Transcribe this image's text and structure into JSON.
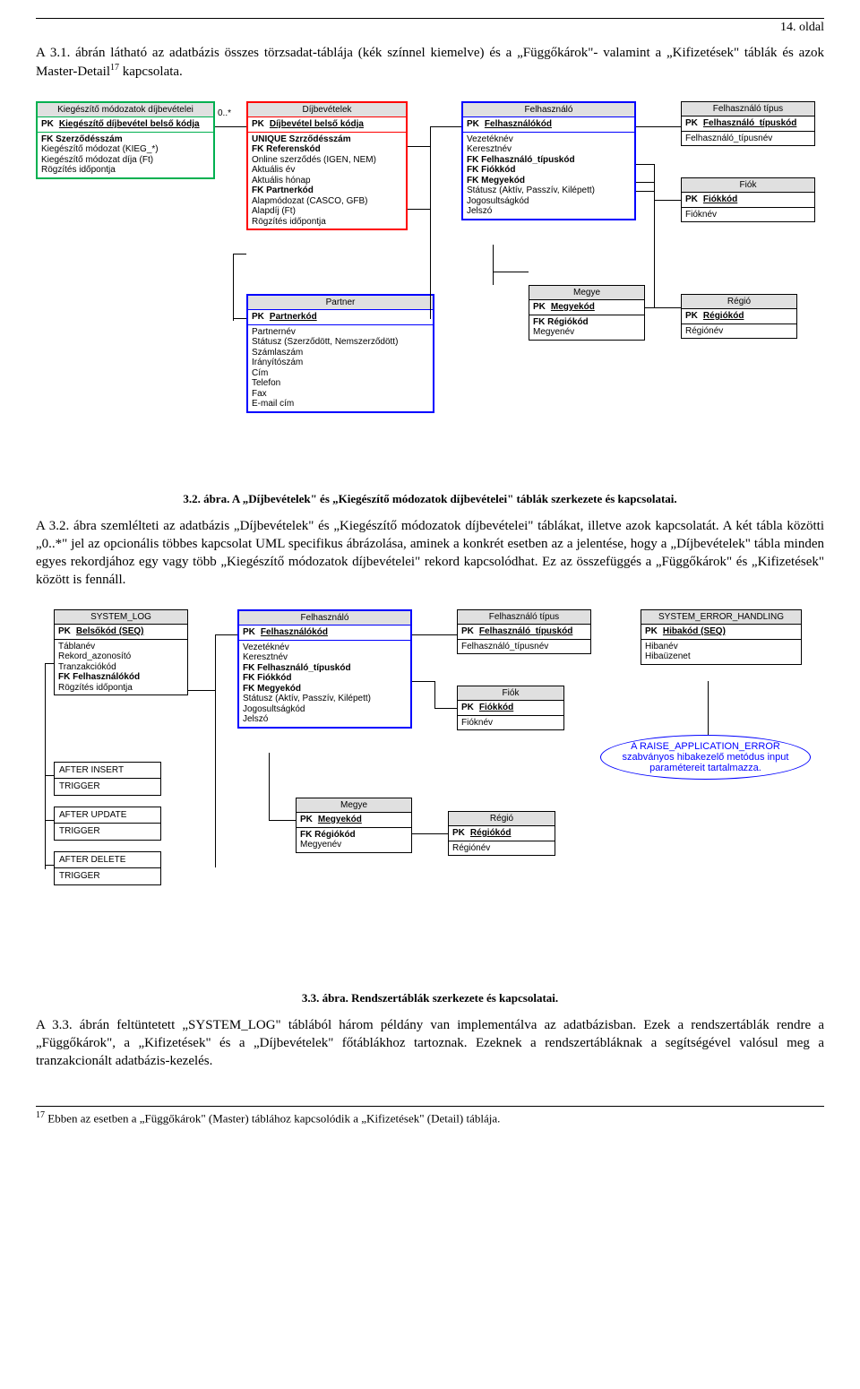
{
  "page_header": "14. oldal",
  "para1": "A 3.1. ábrán látható az adatbázis összes törzsadat-táblája (kék színnel kiemelve) és a „Függőkárok\"- valamint a „Kifizetések\" táblák és azok Master-Detail",
  "para1_sup": "17",
  "para1_tail": " kapcsolata.",
  "caption1": "3.2. ábra. A „Díjbevételek\" és „Kiegészítő módozatok díjbevételei\" táblák szerkezete és kapcsolatai.",
  "para2": "A 3.2. ábra szemlélteti az adatbázis „Díjbevételek\" és „Kiegészítő módozatok díjbevételei\" táblákat, illetve azok kapcsolatát. A két tábla közötti „0..*\" jel az opcionális többes kapcsolat UML specifikus ábrázolása, aminek a konkrét esetben az a jelentése, hogy a „Díjbevételek\" tábla minden egyes rekordjához egy vagy több „Kiegészítő módozatok díjbevételei\" rekord kapcsolódhat. Ez az összefüggés a „Függőkárok\" és „Kifizetések\" között is fennáll.",
  "caption2": "3.3. ábra. Rendszertáblák szerkezete és kapcsolatai.",
  "para3": "A 3.3. ábrán feltüntetett „SYSTEM_LOG\" táblából három példány van implementálva az adatbázisban. Ezek a rendszertáblák rendre a „Függőkárok\", a „Kifizetések\" és a „Díjbevételek\" főtáblákhoz tartoznak. Ezeknek a rendszertábláknak a segítségével valósul meg a tranzakcionált adatbázis-kezelés.",
  "footnote_num": "17",
  "footnote": " Ebben az esetben a „Függőkárok\" (Master) táblához kapcsolódik a „Kifizetések\" (Detail) táblája.",
  "colors": {
    "green": "#00b050",
    "red": "#ff0000",
    "blue": "#0000ff",
    "gray": "#000000",
    "headerbg": "#e0e0e0"
  },
  "d1": {
    "card_label": "0..*",
    "t_kieg": {
      "title": "Kiegészítő módozatok díjbevételei",
      "pk": "Kiegészítő díjbevétel belső kódja",
      "rows": [
        "FK Szerződésszám",
        "Kiegészítő módozat (KIEG_*)",
        "Kiegészítő módozat díja (Ft)",
        "Rögzítés időpontja"
      ]
    },
    "t_dijb": {
      "title": "Díjbevételek",
      "pk": "Díjbevétel belső kódja",
      "rows": [
        "UNIQUE Szrződésszám",
        "FK Referenskód",
        "Online szerződés (IGEN, NEM)",
        "Aktuális év",
        "Aktuális hónap",
        "FK Partnerkód",
        "Alapmódozat (CASCO, GFB)",
        "Alapdíj (Ft)",
        "Rögzítés időpontja"
      ]
    },
    "t_felh": {
      "title": "Felhasználó",
      "pk": "Felhasználókód",
      "rows": [
        "Vezetéknév",
        "Keresztnév",
        "FK Felhasználó_típuskód",
        "FK Fiókkód",
        "FK Megyekód",
        "Státusz (Aktív, Passzív, Kilépett)",
        "Jogosultságkód",
        "Jelszó"
      ]
    },
    "t_ftip": {
      "title": "Felhasználó típus",
      "pk": "Felhasználó_típuskód",
      "rows": [
        "Felhasználó_típusnév"
      ]
    },
    "t_fiok": {
      "title": "Fiók",
      "pk": "Fiókkód",
      "rows": [
        "Fióknév"
      ]
    },
    "t_partner": {
      "title": "Partner",
      "pk": "Partnerkód",
      "rows": [
        "Partnernév",
        "Státusz (Szerződött, Nemszerződött)",
        "Számlaszám",
        "Irányítószám",
        "Cím",
        "Telefon",
        "Fax",
        "E-mail cím"
      ]
    },
    "t_megye": {
      "title": "Megye",
      "pk": "Megyekód",
      "rows": [
        "FK Régiókód",
        "Megyenév"
      ]
    },
    "t_regio": {
      "title": "Régió",
      "pk": "Régiókód",
      "rows": [
        "Régiónév"
      ]
    }
  },
  "d2": {
    "t_syslog": {
      "title": "SYSTEM_LOG",
      "pk": "Belsőkód (SEQ)",
      "rows": [
        "Táblanév",
        "Rekord_azonosító",
        "Tranzakciókód",
        "FK Felhasználókód",
        "Rögzítés időpontja"
      ]
    },
    "t_felh": {
      "title": "Felhasználó",
      "pk": "Felhasználókód",
      "rows": [
        "Vezetéknév",
        "Keresztnév",
        "FK Felhasználó_típuskód",
        "FK Fiókkód",
        "FK Megyekód",
        "Státusz (Aktív, Passzív, Kilépett)",
        "Jogosultságkód",
        "Jelszó"
      ]
    },
    "t_ftip": {
      "title": "Felhasználó típus",
      "pk": "Felhasználó_típuskód",
      "rows": [
        "Felhasználó_típusnév"
      ]
    },
    "t_fiok": {
      "title": "Fiók",
      "pk": "Fiókkód",
      "rows": [
        "Fióknév"
      ]
    },
    "t_megye": {
      "title": "Megye",
      "pk": "Megyekód",
      "rows": [
        "FK Régiókód",
        "Megyenév"
      ]
    },
    "t_regio": {
      "title": "Régió",
      "pk": "Régiókód",
      "rows": [
        "Régiónév"
      ]
    },
    "t_err": {
      "title": "SYSTEM_ERROR_HANDLING",
      "pk": "Hibakód (SEQ)",
      "rows": [
        "Hibanév",
        "Hibaüzenet"
      ]
    },
    "triggers": [
      "AFTER INSERT",
      "TRIGGER",
      "AFTER UPDATE",
      "TRIGGER",
      "AFTER DELETE",
      "TRIGGER"
    ],
    "note": "A RAISE_APPLICATION_ERROR szabványos hibakezelő metódus input paramétereit tartalmazza."
  }
}
